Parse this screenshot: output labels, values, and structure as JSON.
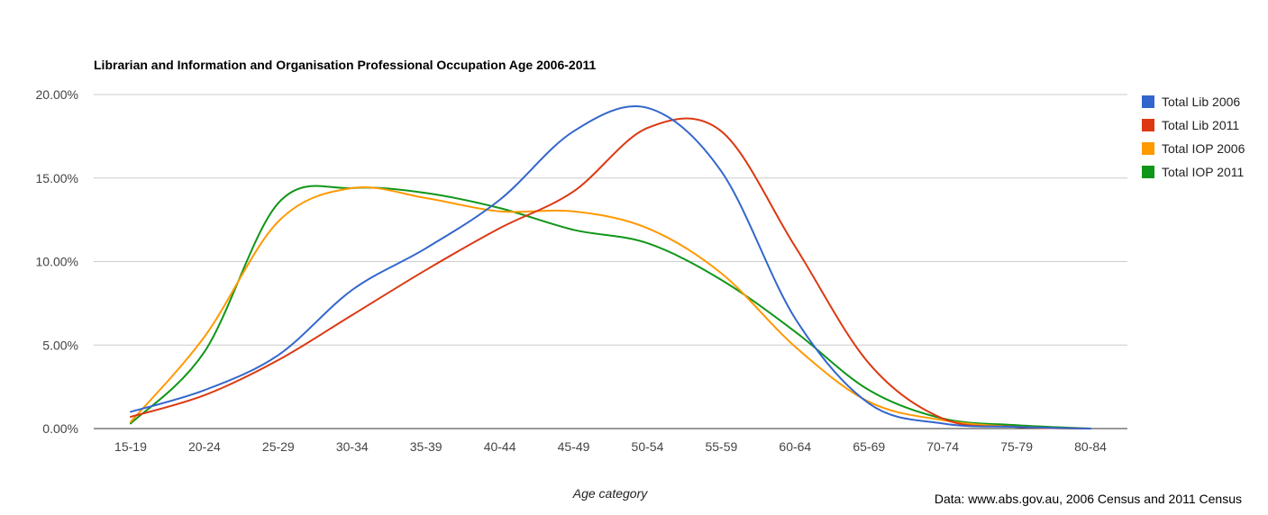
{
  "chart_data": {
    "type": "line",
    "title": "Librarian and Information and Organisation Professional Occupation Age 2006-2011",
    "xlabel": "Age category",
    "ylabel": "",
    "categories": [
      "15-19",
      "20-24",
      "25-29",
      "30-34",
      "35-39",
      "40-44",
      "45-49",
      "50-54",
      "55-59",
      "60-64",
      "65-69",
      "70-74",
      "75-79",
      "80-84"
    ],
    "ylim": [
      0,
      20
    ],
    "y_ticks": [
      "0.00%",
      "5.00%",
      "10.00%",
      "15.00%",
      "20.00%"
    ],
    "y_tick_values": [
      0,
      5,
      10,
      15,
      20
    ],
    "grid": true,
    "legend_position": "right",
    "curve": "smooth",
    "series": [
      {
        "name": "Total Lib 2006",
        "color": "#3366cc",
        "values": [
          1.0,
          2.3,
          4.4,
          8.3,
          10.8,
          13.7,
          17.8,
          19.2,
          15.4,
          6.6,
          1.5,
          0.3,
          0.1,
          0.0
        ]
      },
      {
        "name": "Total Lib 2011",
        "color": "#dc3912",
        "values": [
          0.7,
          2.0,
          4.1,
          6.8,
          9.5,
          12.0,
          14.2,
          18.0,
          17.8,
          10.9,
          3.9,
          0.6,
          0.1,
          0.0
        ]
      },
      {
        "name": "Total IOP 2006",
        "color": "#ff9900",
        "values": [
          0.4,
          5.5,
          12.4,
          14.4,
          13.8,
          13.0,
          13.0,
          12.0,
          9.3,
          4.9,
          1.6,
          0.5,
          0.1,
          0.0
        ]
      },
      {
        "name": "Total IOP 2011",
        "color": "#109618",
        "values": [
          0.3,
          4.6,
          13.5,
          14.4,
          14.1,
          13.2,
          11.9,
          11.1,
          8.9,
          5.8,
          2.3,
          0.6,
          0.2,
          0.0
        ]
      }
    ]
  },
  "source_note": "Data: www.abs.gov.au, 2006 Census and 2011 Census"
}
